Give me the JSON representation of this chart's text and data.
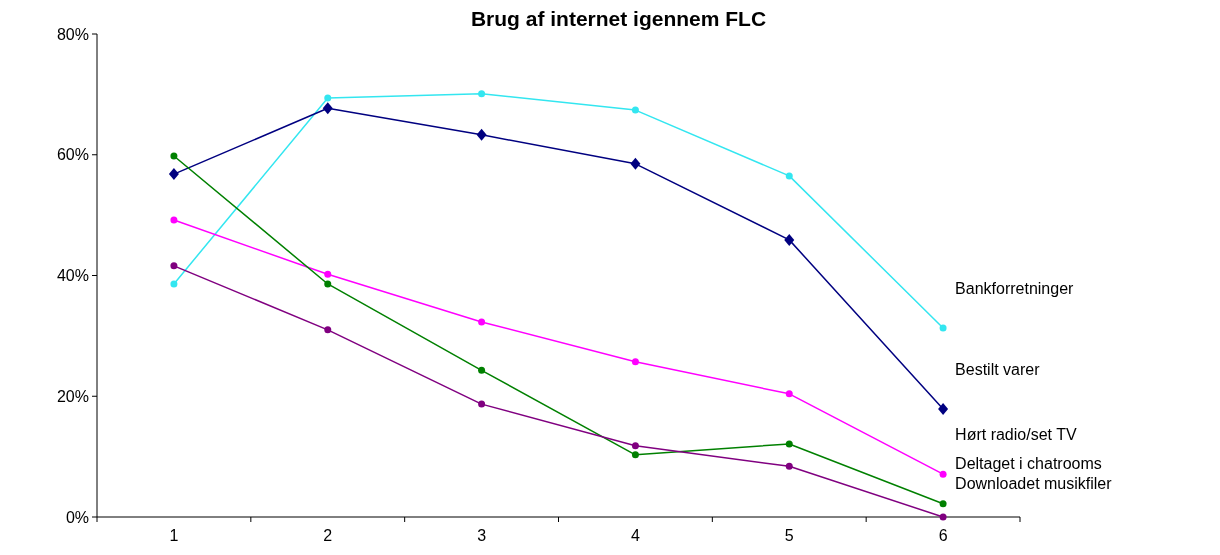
{
  "chart_data": {
    "type": "line",
    "title": "Brug af internet igennem FLC",
    "categories": [
      "1",
      "2",
      "3",
      "4",
      "5",
      "6"
    ],
    "ylim": [
      0,
      80
    ],
    "yticks": [
      {
        "value": 0,
        "label": "0%"
      },
      {
        "value": 20,
        "label": "20%"
      },
      {
        "value": 40,
        "label": "40%"
      },
      {
        "value": 60,
        "label": "60%"
      },
      {
        "value": 80,
        "label": "80%"
      }
    ],
    "series": [
      {
        "name": "Bankforretninger",
        "color": "#33e6f0",
        "marker": "circle",
        "values": [
          38.6,
          69.4,
          70.1,
          67.4,
          56.5,
          31.3
        ]
      },
      {
        "name": "Bestilt varer",
        "color": "#000080",
        "marker": "diamond",
        "values": [
          56.8,
          67.7,
          63.3,
          58.5,
          45.9,
          17.9
        ]
      },
      {
        "name": "Hørt radio/set TV",
        "color": "#ff00ff",
        "marker": "circle",
        "values": [
          49.2,
          40.2,
          32.3,
          25.7,
          20.4,
          7.1
        ]
      },
      {
        "name": "Deltaget i chatrooms",
        "color": "#008000",
        "marker": "circle",
        "values": [
          59.8,
          38.6,
          24.3,
          10.3,
          12.1,
          2.2
        ]
      },
      {
        "name": "Downloadet musikfiler",
        "color": "#800080",
        "marker": "circle",
        "values": [
          41.6,
          31.0,
          18.7,
          11.8,
          8.4,
          0
        ]
      }
    ]
  }
}
